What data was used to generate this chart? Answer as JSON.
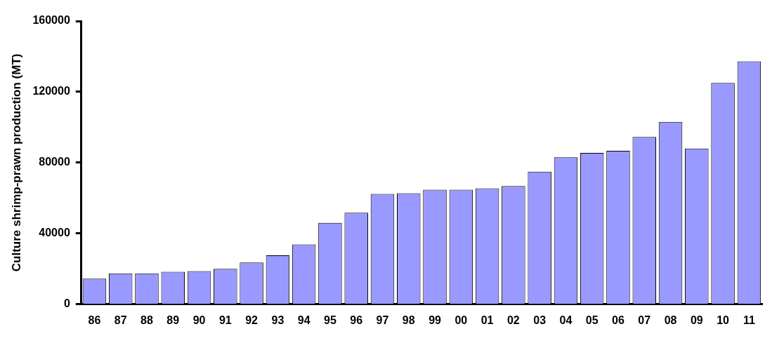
{
  "chart_data": {
    "type": "bar",
    "ylabel": "Culture shrimp-prawn production (MT)",
    "categories": [
      "86",
      "87",
      "88",
      "89",
      "90",
      "91",
      "92",
      "93",
      "94",
      "95",
      "96",
      "97",
      "98",
      "99",
      "00",
      "01",
      "02",
      "03",
      "04",
      "05",
      "06",
      "07",
      "08",
      "09",
      "10",
      "11"
    ],
    "values": [
      14500,
      17500,
      17500,
      18300,
      18700,
      20000,
      23600,
      27700,
      33800,
      46000,
      51700,
      62300,
      62700,
      64700,
      64700,
      65500,
      66800,
      74900,
      83000,
      85500,
      86700,
      94500,
      103000,
      88000,
      125000,
      137200
    ],
    "color": "#9999ff",
    "ylim": [
      0,
      160000
    ],
    "yticks": [
      0,
      40000,
      80000,
      120000,
      160000
    ],
    "grid": false,
    "legend": false
  }
}
